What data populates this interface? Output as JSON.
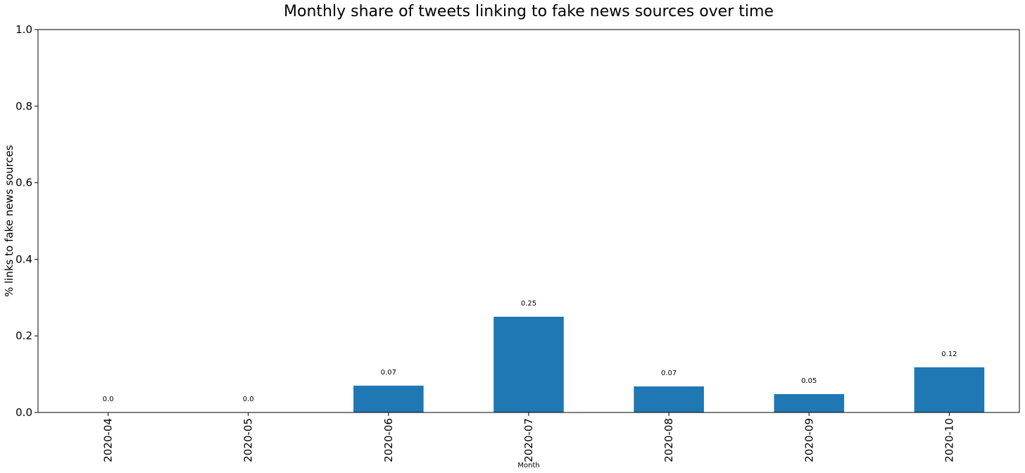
{
  "chart_data": {
    "type": "bar",
    "title": "Monthly share of tweets linking to fake news sources over time",
    "xlabel": "Month",
    "ylabel": "% links to fake news sources",
    "categories": [
      "2020-04",
      "2020-05",
      "2020-06",
      "2020-07",
      "2020-08",
      "2020-09",
      "2020-10"
    ],
    "values": [
      0.0,
      0.0,
      0.07,
      0.25,
      0.068,
      0.048,
      0.118
    ],
    "data_labels": [
      "0.0",
      "0.0",
      "0.07",
      "0.25",
      "0.07",
      "0.05",
      "0.12"
    ],
    "ylim": [
      0,
      1.0
    ],
    "yticks": [
      0.0,
      0.2,
      0.4,
      0.6,
      0.8,
      1.0
    ],
    "ytick_labels": [
      "0.0",
      "0.2",
      "0.4",
      "0.6",
      "0.8",
      "1.0"
    ],
    "bar_color": "#1f77b4",
    "grid": false,
    "legend": "none"
  }
}
